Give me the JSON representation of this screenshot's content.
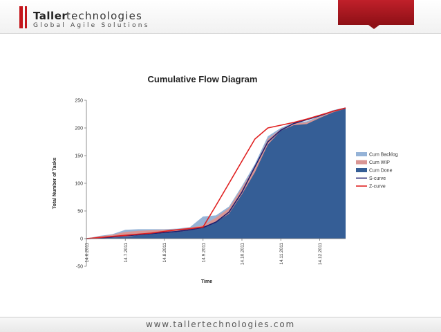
{
  "header": {
    "brand_bold": "Taller",
    "brand_light": "technologies",
    "tagline": "Global Agile Solutions"
  },
  "footer": {
    "url": "www.tallertechnologies.com"
  },
  "chart_data": {
    "type": "area",
    "title": "Cumulative Flow Diagram",
    "xlabel": "Time",
    "ylabel": "Total Number of Tasks",
    "ylim": [
      -50,
      250
    ],
    "yticks": [
      -50,
      0,
      50,
      100,
      150,
      200,
      250
    ],
    "x_tick_labels": [
      "14.6.2011",
      "14.7.2011",
      "14.8.2011",
      "14.9.2011",
      "14.10.2011",
      "14.11.2011",
      "14.12.2011"
    ],
    "x": [
      "14.6.2011",
      "24.6.2011",
      "4.7.2011",
      "14.7.2011",
      "24.7.2011",
      "4.8.2011",
      "14.8.2011",
      "24.8.2011",
      "4.9.2011",
      "14.9.2011",
      "24.9.2011",
      "4.10.2011",
      "14.10.2011",
      "24.10.2011",
      "4.11.2011",
      "14.11.2011",
      "24.11.2011",
      "4.12.2011",
      "14.12.2011",
      "24.12.2011",
      "1.1.2012"
    ],
    "grid": false,
    "legend_position": "right",
    "series": [
      {
        "name": "Cum Backlog",
        "kind": "area",
        "color": "#95b3d7",
        "values": [
          0,
          5,
          8,
          16,
          17,
          17,
          17,
          18,
          21,
          40,
          42,
          58,
          95,
          135,
          185,
          200,
          210,
          212,
          222,
          232,
          237
        ]
      },
      {
        "name": "Cum WIP",
        "kind": "area",
        "color": "#d99694",
        "values": [
          0,
          4,
          7,
          12,
          14,
          15,
          16,
          17,
          20,
          24,
          38,
          55,
          92,
          130,
          180,
          198,
          208,
          210,
          220,
          230,
          236
        ]
      },
      {
        "name": "Cum Done",
        "kind": "area",
        "color": "#355e96",
        "values": [
          0,
          1,
          2,
          3,
          6,
          8,
          10,
          12,
          15,
          19,
          30,
          45,
          80,
          120,
          170,
          195,
          205,
          207,
          218,
          228,
          235
        ]
      },
      {
        "name": "S-curve",
        "kind": "line",
        "color": "#1f1f6f",
        "values": [
          0,
          1,
          3,
          5,
          7,
          9,
          11,
          13,
          16,
          20,
          30,
          48,
          84,
          130,
          175,
          196,
          208,
          215,
          222,
          230,
          236
        ]
      },
      {
        "name": "Z-curve",
        "kind": "line",
        "color": "#e02020",
        "values": [
          0,
          2,
          4,
          6,
          8,
          10,
          13,
          16,
          18,
          21,
          60,
          100,
          140,
          180,
          200,
          205,
          210,
          216,
          223,
          230,
          236
        ]
      }
    ]
  }
}
